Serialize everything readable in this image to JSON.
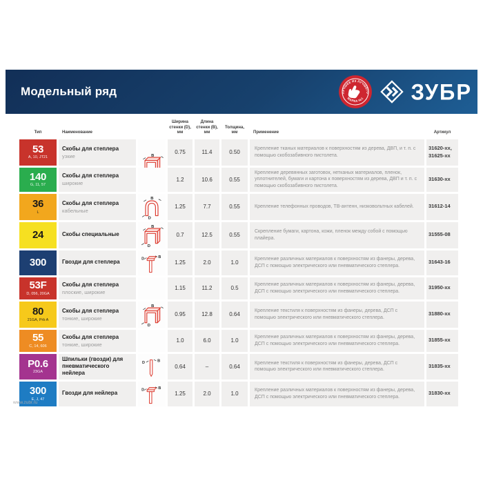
{
  "colors": {
    "header_top": "#122f57",
    "header_mid": "#17416d",
    "header_bottom": "#1e5e95",
    "stamp_red": "#ce2630",
    "row_bg": "#f0efee",
    "icon_red": "#dc3a2e"
  },
  "header": {
    "title": "Модельный ряд",
    "stamp_top": "ЛУЧШЕЕ ИЗ ЛУЧШЕГО",
    "stamp_bottom": "МАРКА №1",
    "wordmark": "ЗУБР"
  },
  "table": {
    "headers": {
      "type": "Тип",
      "name": "Наименование",
      "width": "Ширина стенки (D), мм",
      "length": "Длина стенки (B), мм",
      "thickness": "Толщина, мм",
      "application": "Применение",
      "sku": "Артикул"
    },
    "rows": [
      {
        "type": "53",
        "codes": "A, 10, JT21",
        "badge_bg": "#c8332b",
        "badge_fg": "#ffffff",
        "name": "Скобы для степлера",
        "subtitle": "узкие",
        "icon": "staple-icon",
        "icon_shared": true,
        "width": "0.75",
        "length": "11.4",
        "thickness": "0.50",
        "application": "Крепление тканых материалов к поверхностям из дерева, ДВП, и т. п. с помощью скобозабивного пистолета.",
        "sku": "31620-xx, 31625-xx"
      },
      {
        "type": "140",
        "codes": "G, 11, 57",
        "badge_bg": "#2aad4e",
        "badge_fg": "#ffffff",
        "name": "Скобы для степлера",
        "subtitle": "широкие",
        "icon": "",
        "icon_shared": false,
        "width": "1.2",
        "length": "10.6",
        "thickness": "0.55",
        "application": "Крепление деревянных заготовок, нетканых материалов, пленок, уплотнителей, бумаги и картона к поверхностям из дерева, ДВП и т. п. с помощью скобозабивного пистолета.",
        "sku": "31630-xx"
      },
      {
        "type": "36",
        "codes": "L",
        "badge_bg": "#f2a71d",
        "badge_fg": "#1a1a1a",
        "name": "Скобы для степлера",
        "subtitle": "кабельные",
        "icon": "cable-staple-icon",
        "icon_shared": false,
        "width": "1.25",
        "length": "7.7",
        "thickness": "0.55",
        "application": "Крепление телефонных проводов, ТВ-антенн, низковольтных кабелей.",
        "sku": "31612-14"
      },
      {
        "type": "24",
        "codes": "",
        "badge_bg": "#f6e021",
        "badge_fg": "#1a1a1a",
        "name": "Скобы специальные",
        "subtitle": "",
        "icon": "staple-icon",
        "icon_shared": false,
        "width": "0.7",
        "length": "12.5",
        "thickness": "0.55",
        "application": "Скрепление бумаги, картона, кожи, пленок между собой с помощью плайера.",
        "sku": "31555-08"
      },
      {
        "type": "300",
        "codes": "",
        "badge_bg": "#1d3f72",
        "badge_fg": "#ffffff",
        "name": "Гвозди для степлера",
        "subtitle": "",
        "icon": "nail-icon",
        "icon_shared": false,
        "width": "1.25",
        "length": "2.0",
        "thickness": "1.0",
        "application": "Крепление различных материалов к поверхностям из фанеры, дерева, ДСП с помощью электрического или пневматического степлера.",
        "sku": "31643-16"
      },
      {
        "type": "53F",
        "codes": "D, 056, 20GA",
        "badge_bg": "#c8332b",
        "badge_fg": "#ffffff",
        "name": "Скобы для степлера",
        "subtitle": "плоские, широкие",
        "icon": "",
        "icon_shared": false,
        "width": "1.15",
        "length": "11.2",
        "thickness": "0.5",
        "application": "Крепление различных материалов к поверхностям из фанеры, дерева, ДСП с помощью электрического или пневматического степлера.",
        "sku": "31950-xx"
      },
      {
        "type": "80",
        "codes": "21GA, Prb A",
        "badge_bg": "#f6c91b",
        "badge_fg": "#1a1a1a",
        "name": "Скобы для степлера",
        "subtitle": "тонкие, широкие",
        "icon": "staple-icon",
        "icon_shared": false,
        "width": "0.95",
        "length": "12.8",
        "thickness": "0.64",
        "application": "Крепление текстиля к поверхностям из фанеры, дерева, ДСП с помощью электрического или пневматического степлера.",
        "sku": "31880-xx"
      },
      {
        "type": "55",
        "codes": "C, 14, 606",
        "badge_bg": "#ee8c23",
        "badge_fg": "#ffffff",
        "name": "Скобы для степлера",
        "subtitle": "тонкие, широкие",
        "icon": "",
        "icon_shared": false,
        "width": "1.0",
        "length": "6.0",
        "thickness": "1.0",
        "application": "Крепление различных материалов к поверхностям из фанеры, дерева, ДСП с помощью электрического или пневматического степлера.",
        "sku": "31855-xx"
      },
      {
        "type": "P0.6",
        "codes": "23GA",
        "badge_bg": "#a4348f",
        "badge_fg": "#ffffff",
        "name": "Шпильки (гвозди) для пневматического нейлера",
        "subtitle": "",
        "icon": "pin-icon",
        "icon_shared": false,
        "width": "0.64",
        "length": "–",
        "thickness": "0.64",
        "application": "Крепление текстиля к поверхностям из фанеры, дерева, ДСП с помощью электрического или пневматического степлера.",
        "sku": "31835-xx"
      },
      {
        "type": "300",
        "codes": "E, J, 47",
        "badge_bg": "#1e7cc3",
        "badge_fg": "#ffffff",
        "name": "Гвозди для нейлера",
        "subtitle": "",
        "icon": "nail-icon",
        "icon_shared": false,
        "width": "1.25",
        "length": "2.0",
        "thickness": "1.0",
        "application": "Крепление различных материалов к поверхностям из фанеры, дерева, ДСП с помощью электрического или пневматического степлера.",
        "sku": "31830-xx"
      }
    ]
  },
  "footer": {
    "url": "www.zubr.ru"
  }
}
